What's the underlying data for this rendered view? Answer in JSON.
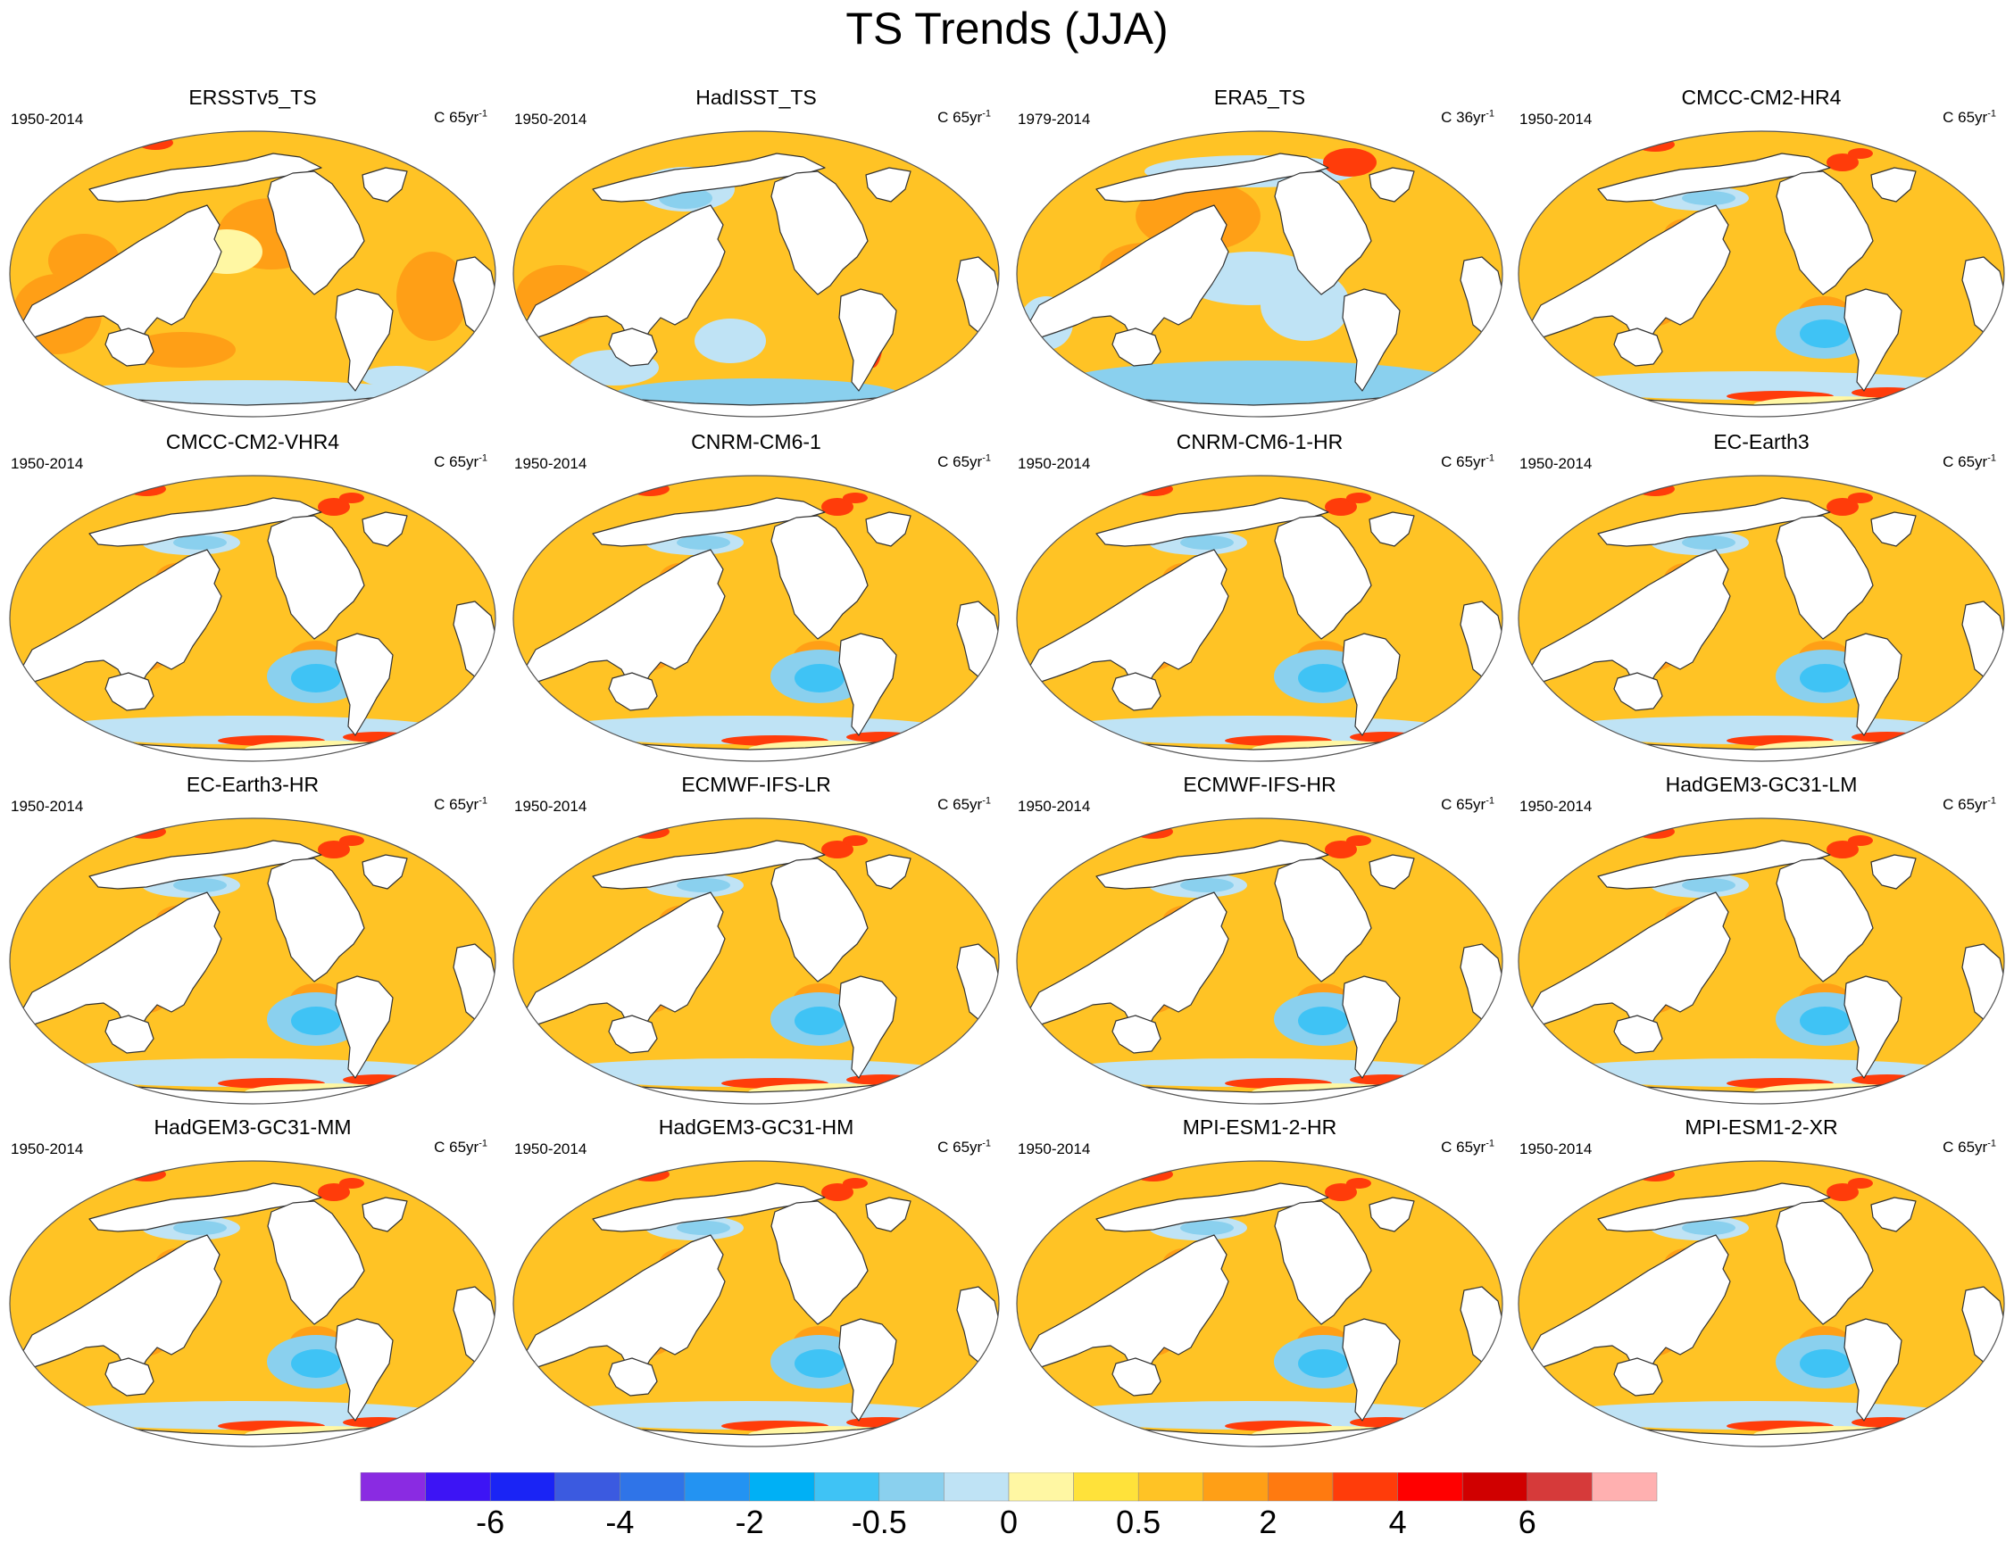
{
  "title": "TS Trends (JJA)",
  "panels": [
    {
      "title": "ERSSTv5_TS",
      "period": "1950-2014",
      "units_prefix": "C 65yr",
      "units_exp": "-1",
      "style": "obs1"
    },
    {
      "title": "HadISST_TS",
      "period": "1950-2014",
      "units_prefix": "C 65yr",
      "units_exp": "-1",
      "style": "obs2"
    },
    {
      "title": "ERA5_TS",
      "period": "1979-2014",
      "units_prefix": "C 36yr",
      "units_exp": "-1",
      "style": "era5"
    },
    {
      "title": "CMCC-CM2-HR4",
      "period": "1950-2014",
      "units_prefix": "C 65yr",
      "units_exp": "-1",
      "style": "model"
    },
    {
      "title": "CMCC-CM2-VHR4",
      "period": "1950-2014",
      "units_prefix": "C 65yr",
      "units_exp": "-1",
      "style": "model"
    },
    {
      "title": "CNRM-CM6-1",
      "period": "1950-2014",
      "units_prefix": "C 65yr",
      "units_exp": "-1",
      "style": "model"
    },
    {
      "title": "CNRM-CM6-1-HR",
      "period": "1950-2014",
      "units_prefix": "C 65yr",
      "units_exp": "-1",
      "style": "model"
    },
    {
      "title": "EC-Earth3",
      "period": "1950-2014",
      "units_prefix": "C 65yr",
      "units_exp": "-1",
      "style": "model"
    },
    {
      "title": "EC-Earth3-HR",
      "period": "1950-2014",
      "units_prefix": "C 65yr",
      "units_exp": "-1",
      "style": "model"
    },
    {
      "title": "ECMWF-IFS-LR",
      "period": "1950-2014",
      "units_prefix": "C 65yr",
      "units_exp": "-1",
      "style": "model"
    },
    {
      "title": "ECMWF-IFS-HR",
      "period": "1950-2014",
      "units_prefix": "C 65yr",
      "units_exp": "-1",
      "style": "model"
    },
    {
      "title": "HadGEM3-GC31-LM",
      "period": "1950-2014",
      "units_prefix": "C 65yr",
      "units_exp": "-1",
      "style": "model"
    },
    {
      "title": "HadGEM3-GC31-MM",
      "period": "1950-2014",
      "units_prefix": "C 65yr",
      "units_exp": "-1",
      "style": "model"
    },
    {
      "title": "HadGEM3-GC31-HM",
      "period": "1950-2014",
      "units_prefix": "C 65yr",
      "units_exp": "-1",
      "style": "model"
    },
    {
      "title": "MPI-ESM1-2-HR",
      "period": "1950-2014",
      "units_prefix": "C 65yr",
      "units_exp": "-1",
      "style": "model"
    },
    {
      "title": "MPI-ESM1-2-XR",
      "period": "1950-2014",
      "units_prefix": "C 65yr",
      "units_exp": "-1",
      "style": "model"
    }
  ],
  "colorbar": {
    "colors": [
      "#8a2be2",
      "#3d14f5",
      "#1a24f5",
      "#3b5ae0",
      "#2f74e8",
      "#2393f2",
      "#00b0f5",
      "#3fc3f5",
      "#8ad0ee",
      "#bfe3f5",
      "#fff7a3",
      "#ffe23a",
      "#ffc325",
      "#ff9f16",
      "#ff7a10",
      "#ff3c0a",
      "#ff0000",
      "#d00000",
      "#d63a3a",
      "#ffb0b0"
    ],
    "labels": [
      "-6",
      "-4",
      "-2",
      "-0.5",
      "0",
      "0.5",
      "2",
      "4",
      "6"
    ],
    "label_boundaries": [
      2,
      4,
      6,
      8,
      10,
      12,
      14,
      16,
      18
    ]
  },
  "map_colors": {
    "land": "#ffffff",
    "coast": "#333333",
    "pale_yellow": "#fff7a3",
    "yellow": "#ffe23a",
    "gold": "#ffc325",
    "orange": "#ff9f16",
    "dark_orange": "#ff7a10",
    "red": "#ff3c0a",
    "light_blue": "#bfe3f5",
    "mid_blue": "#8ad0ee",
    "cyan_blue": "#3fc3f5"
  }
}
